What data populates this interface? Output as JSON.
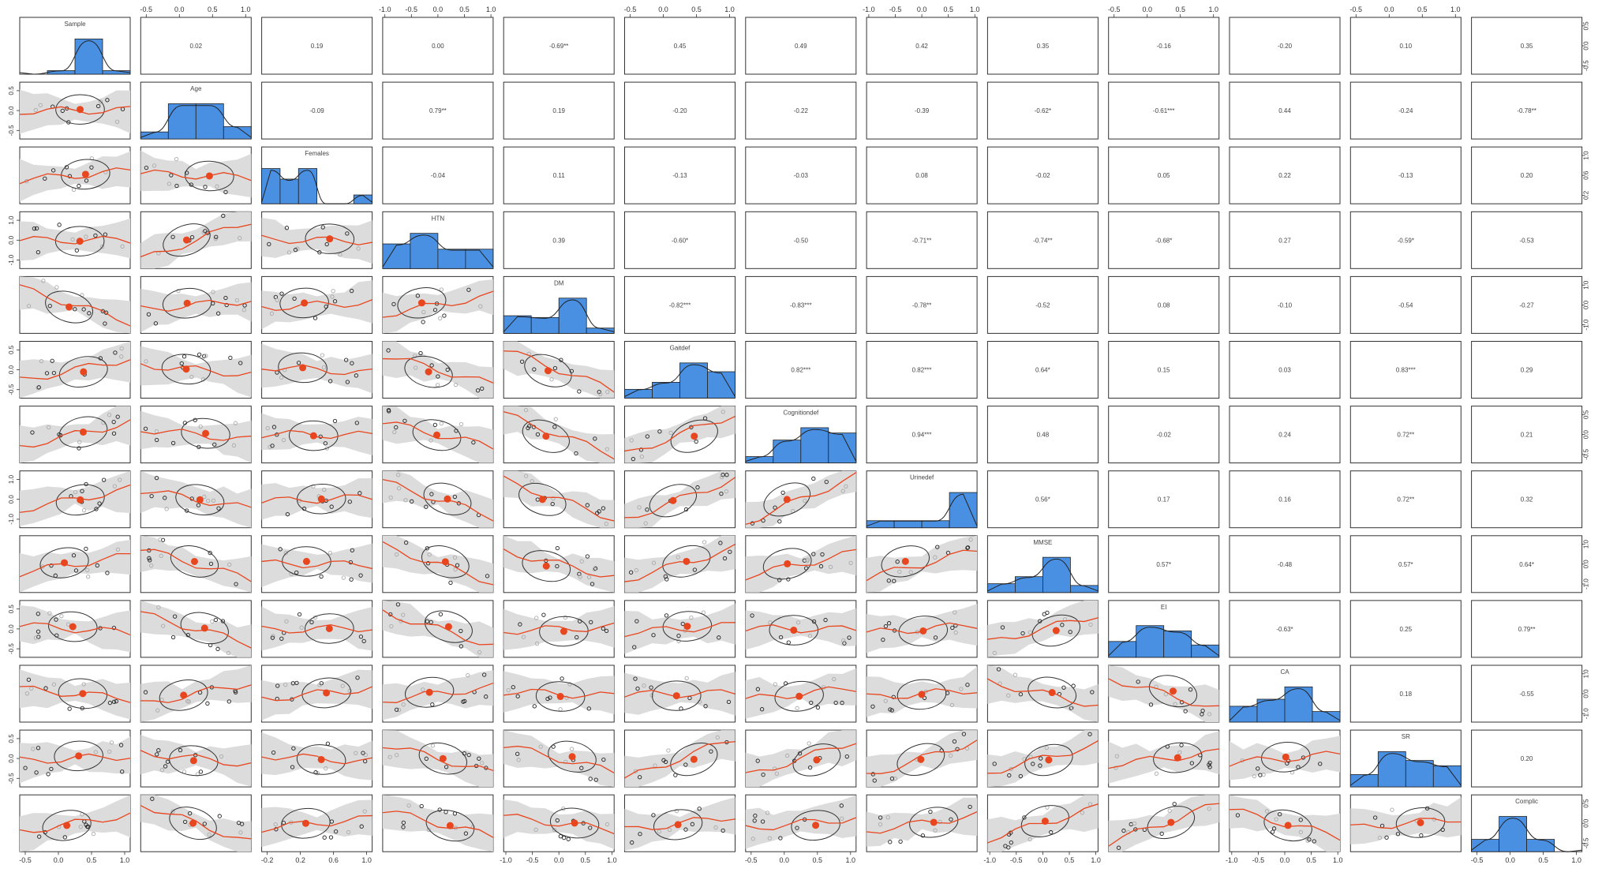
{
  "chart_data": {
    "type": "scatter",
    "variables": [
      "Sample",
      "Age",
      "Females",
      "HTN",
      "DM",
      "Gaitdef",
      "Cognitiondef",
      "Urinedef",
      "MMSE",
      "EI",
      "CA",
      "SR",
      "Complic"
    ],
    "correlation_labels": [
      [
        "",
        "0.02",
        "0.19",
        "0.00",
        "-0.69**",
        "0.45",
        "0.49",
        "0.42",
        "0.35",
        "-0.16",
        "-0.20",
        "0.10",
        "0.35"
      ],
      [
        "",
        "",
        "-0.09",
        "0.79**",
        "0.19",
        "-0.20",
        "-0.22",
        "-0.39",
        "-0.62*",
        "-0.61***",
        "0.44",
        "-0.24",
        "-0.78**"
      ],
      [
        "",
        "",
        "",
        "-0.04",
        "0.11",
        "-0.13",
        "-0.03",
        "0.08",
        "-0.02",
        "0.05",
        "0.22",
        "-0.13",
        "0.20"
      ],
      [
        "",
        "",
        "",
        "",
        "0.39",
        "-0.60*",
        "-0.50",
        "-0.71**",
        "-0.74**",
        "-0.68*",
        "0.27",
        "-0.59*",
        "-0.53"
      ],
      [
        "",
        "",
        "",
        "",
        "",
        "-0.82***",
        "-0.83***",
        "-0.78**",
        "-0.52",
        "0.08",
        "-0.10",
        "-0.54",
        "-0.27"
      ],
      [
        "",
        "",
        "",
        "",
        "",
        "",
        "0.82***",
        "0.82***",
        "0.64*",
        "0.15",
        "0.03",
        "0.83***",
        "0.29"
      ],
      [
        "",
        "",
        "",
        "",
        "",
        "",
        "",
        "0.94***",
        "0.48",
        "-0.02",
        "0.24",
        "0.72**",
        "0.21"
      ],
      [
        "",
        "",
        "",
        "",
        "",
        "",
        "",
        "",
        "0.56*",
        "0.17",
        "0.16",
        "0.72**",
        "0.32"
      ],
      [
        "",
        "",
        "",
        "",
        "",
        "",
        "",
        "",
        "",
        "0.57*",
        "-0.48",
        "0.57*",
        "0.64*"
      ],
      [
        "",
        "",
        "",
        "",
        "",
        "",
        "",
        "",
        "",
        "",
        "-0.63*",
        "0.25",
        "0.79**"
      ],
      [
        "",
        "",
        "",
        "",
        "",
        "",
        "",
        "",
        "",
        "",
        "",
        "0.18",
        "-0.55"
      ],
      [
        "",
        "",
        "",
        "",
        "",
        "",
        "",
        "",
        "",
        "",
        "",
        "",
        "0.20"
      ],
      [
        "",
        "",
        "",
        "",
        "",
        "",
        "",
        "",
        "",
        "",
        "",
        "",
        ""
      ]
    ],
    "histograms": [
      [
        0.0,
        0.1,
        1.0,
        0.1
      ],
      [
        0.2,
        1.0,
        1.0,
        0.35
      ],
      [
        1.0,
        0.7,
        1.0,
        0.0,
        0.0,
        0.25
      ],
      [
        0.7,
        1.0,
        0.55,
        0.55
      ],
      [
        0.5,
        0.45,
        1.0,
        0.15
      ],
      [
        0.25,
        0.45,
        1.0,
        0.75
      ],
      [
        0.18,
        0.65,
        1.0,
        0.85
      ],
      [
        0.2,
        0.2,
        0.2,
        1.0
      ],
      [
        0.25,
        0.45,
        1.0,
        0.2
      ],
      [
        0.45,
        0.9,
        0.75,
        0.35
      ],
      [
        0.45,
        0.65,
        1.0,
        0.3
      ],
      [
        0.35,
        1.0,
        0.75,
        0.6
      ],
      [
        0.35,
        1.0,
        0.35,
        0.0
      ]
    ],
    "tick_labels": {
      "x": [
        [
          "-0.5",
          "0.0",
          "0.5",
          "1.0"
        ],
        [
          "-0.5",
          "0.0",
          "0.5",
          "1.0"
        ],
        [
          "-0.2",
          "0.2",
          "0.6",
          "1.0"
        ],
        [
          "-1.0",
          "-0.5",
          "0.0",
          "0.5",
          "1.0"
        ],
        [
          "-1.0",
          "-0.5",
          "0.0",
          "0.5",
          "1.0"
        ],
        [
          "-0.5",
          "0.0",
          "0.5",
          "1.0"
        ],
        [
          "-0.5",
          "0.0",
          "0.5",
          "1.0"
        ],
        [
          "-1.0",
          "-0.5",
          "0.0",
          "0.5",
          "1.0"
        ],
        [
          "-1.0",
          "-0.5",
          "0.0",
          "0.5",
          "1.0"
        ],
        [
          "-0.5",
          "0.0",
          "0.5",
          "1.0"
        ],
        [
          "-1.0",
          "-0.5",
          "0.0",
          "0.5",
          "1.0"
        ],
        [
          "-0.5",
          "0.0",
          "0.5",
          "1.0"
        ],
        [
          "-0.5",
          "0.0",
          "0.5",
          "1.0"
        ]
      ],
      "y": [
        [
          "-0.5",
          "0.0",
          "0.5"
        ],
        [
          "-0.5",
          "0.0",
          "0.5"
        ],
        [
          "0.2",
          "0.6",
          "1.0"
        ],
        [
          "-1.0",
          "0.0",
          "1.0"
        ],
        [
          "-1.0",
          "0.0",
          "1.0"
        ],
        [
          "-0.5",
          "0.0",
          "0.5"
        ],
        [
          "-0.5",
          "0.0",
          "0.5"
        ],
        [
          "-1.0",
          "0.0",
          "1.0"
        ],
        [
          "-1.0",
          "0.0",
          "1.0"
        ],
        [
          "-0.5",
          "0.0",
          "0.5"
        ],
        [
          "-1.0",
          "0.0",
          "1.0"
        ],
        [
          "-0.5",
          "0.0",
          "0.5"
        ],
        [
          "-0.5",
          "0.0",
          "0.5"
        ]
      ]
    },
    "colors": {
      "histogram_fill": "#4a90e2",
      "point_fill": "#e8461e",
      "smooth_line": "#e8461e",
      "confidence_band": "#dcdcdc",
      "ellipse": "#333333",
      "panel_border": "#333333",
      "text": "#444444"
    },
    "grid": false
  }
}
